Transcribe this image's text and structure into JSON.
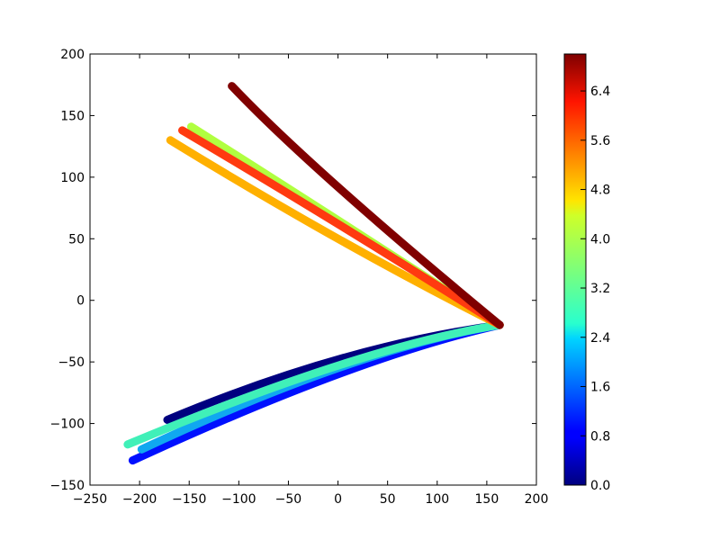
{
  "chart_data": {
    "type": "scatter",
    "title": "",
    "xlabel": "",
    "ylabel": "",
    "xlim": [
      -250,
      200
    ],
    "ylim": [
      -150,
      200
    ],
    "xticks": [
      "−250",
      "−200",
      "−150",
      "−100",
      "−50",
      "0",
      "50",
      "100",
      "150",
      "200"
    ],
    "xtick_values": [
      -250,
      -200,
      -150,
      -100,
      -50,
      0,
      50,
      100,
      150,
      200
    ],
    "yticks": [
      "−150",
      "−100",
      "−50",
      "0",
      "50",
      "100",
      "150",
      "200"
    ],
    "ytick_values": [
      -150,
      -100,
      -50,
      0,
      50,
      100,
      150,
      200
    ],
    "grid": false,
    "colorbar": {
      "colormap": "jet",
      "range": [
        0.0,
        7.0
      ],
      "ticks": [
        "0.0",
        "0.8",
        "1.6",
        "2.4",
        "3.2",
        "4.0",
        "4.8",
        "5.6",
        "6.4"
      ],
      "tick_values": [
        0.0,
        0.8,
        1.6,
        2.4,
        3.2,
        4.0,
        4.8,
        5.6,
        6.4
      ],
      "position": "right"
    },
    "convergence_point": [
      163,
      -20
    ],
    "series": [
      {
        "name": "c=0.0",
        "color": "#00007f",
        "c": 0.0,
        "start": [
          -172,
          -97
        ],
        "mid": [
          0,
          -48
        ],
        "end": [
          163,
          -20
        ]
      },
      {
        "name": "c=0.9",
        "color": "#0010ff",
        "c": 0.9,
        "start": [
          -207,
          -130
        ],
        "mid": [
          0,
          -60
        ],
        "end": [
          163,
          -20
        ]
      },
      {
        "name": "c=2.1",
        "color": "#10a8f0",
        "c": 2.1,
        "start": [
          -198,
          -121
        ],
        "mid": [
          0,
          -55
        ],
        "end": [
          163,
          -20
        ]
      },
      {
        "name": "c=2.9",
        "color": "#40f0b8",
        "c": 2.9,
        "start": [
          -212,
          -117
        ],
        "mid": [
          0,
          -53
        ],
        "end": [
          163,
          -20
        ]
      },
      {
        "name": "c=4.2",
        "color": "#b0ff40",
        "c": 4.2,
        "start": [
          -148,
          141
        ],
        "mid": [
          0,
          65
        ],
        "end": [
          163,
          -20
        ]
      },
      {
        "name": "c=5.2",
        "color": "#ffb000",
        "c": 5.2,
        "start": [
          -169,
          130
        ],
        "mid": [
          0,
          50
        ],
        "end": [
          163,
          -20
        ]
      },
      {
        "name": "c=6.3",
        "color": "#ff3a10",
        "c": 6.3,
        "start": [
          -157,
          138
        ],
        "mid": [
          0,
          62
        ],
        "end": [
          163,
          -20
        ]
      },
      {
        "name": "c=7.0",
        "color": "#800000",
        "c": 7.0,
        "start": [
          -107,
          174
        ],
        "mid": [
          0,
          92
        ],
        "end": [
          163,
          -20
        ]
      }
    ]
  }
}
